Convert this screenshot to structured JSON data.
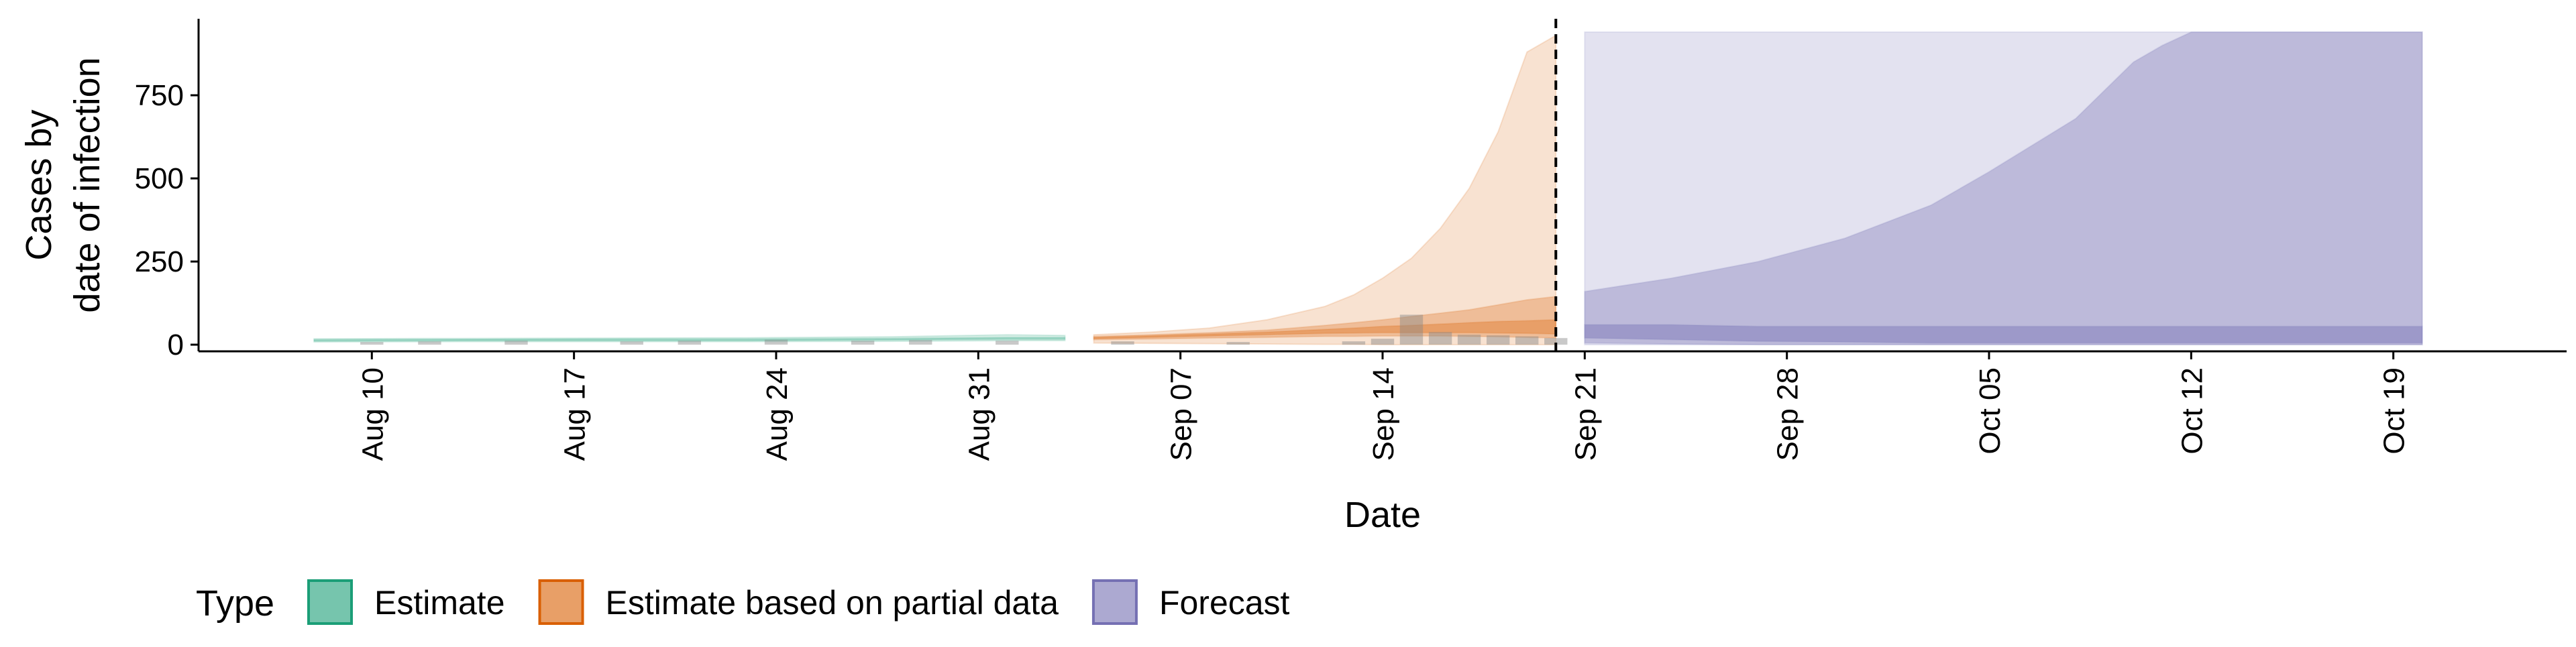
{
  "chart_data": {
    "type": "area",
    "xlabel": "Date",
    "ylabel_lines": [
      "Cases by",
      "date of infection"
    ],
    "x_range": [
      "2020-08-04",
      "2020-10-25"
    ],
    "ylim": [
      -20,
      980
    ],
    "y_ticks": [
      0,
      250,
      500,
      750
    ],
    "x_ticks": [
      {
        "date": "2020-08-10",
        "label": "Aug 10"
      },
      {
        "date": "2020-08-17",
        "label": "Aug 17"
      },
      {
        "date": "2020-08-24",
        "label": "Aug 24"
      },
      {
        "date": "2020-08-31",
        "label": "Aug 31"
      },
      {
        "date": "2020-09-07",
        "label": "Sep 07"
      },
      {
        "date": "2020-09-14",
        "label": "Sep 14"
      },
      {
        "date": "2020-09-21",
        "label": "Sep 21"
      },
      {
        "date": "2020-09-28",
        "label": "Sep 28"
      },
      {
        "date": "2020-10-05",
        "label": "Oct 05"
      },
      {
        "date": "2020-10-12",
        "label": "Oct 12"
      },
      {
        "date": "2020-10-19",
        "label": "Oct 19"
      }
    ],
    "vline_date": "2020-09-20",
    "grid": false,
    "legend": {
      "title": "Type",
      "position": "bottom-left"
    },
    "series": [
      {
        "name": "Estimate",
        "color": "#1b9e77",
        "x": [
          "2020-08-08",
          "2020-08-13",
          "2020-08-18",
          "2020-08-23",
          "2020-08-28",
          "2020-09-01",
          "2020-09-03"
        ],
        "bands": [
          {
            "lower": [
              8,
              9,
              9,
              9,
              10,
              12,
              12
            ],
            "upper": [
              18,
              19,
              20,
              21,
              24,
              30,
              28
            ]
          },
          {
            "lower": [
              11,
              12,
              12,
              12,
              14,
              16,
              16
            ],
            "upper": [
              15,
              16,
              17,
              17,
              19,
              22,
              22
            ]
          }
        ]
      },
      {
        "name": "Estimate based on partial data",
        "color": "#d95f02",
        "x": [
          "2020-09-04",
          "2020-09-06",
          "2020-09-08",
          "2020-09-10",
          "2020-09-12",
          "2020-09-13",
          "2020-09-14",
          "2020-09-15",
          "2020-09-16",
          "2020-09-17",
          "2020-09-18",
          "2020-09-19",
          "2020-09-20"
        ],
        "bands": [
          {
            "lower": [
              5,
              4,
              3,
              2,
              1,
              1,
              0,
              0,
              0,
              0,
              0,
              0,
              0
            ],
            "upper": [
              30,
              38,
              50,
              75,
              115,
              150,
              200,
              260,
              350,
              470,
              640,
              880,
              930
            ]
          },
          {
            "lower": [
              15,
              17,
              20,
              22,
              25,
              25,
              26,
              26,
              26,
              25,
              24,
              22,
              20
            ],
            "upper": [
              25,
              30,
              36,
              44,
              58,
              66,
              75,
              85,
              95,
              105,
              120,
              135,
              145
            ]
          },
          {
            "lower": [
              18,
              22,
              26,
              30,
              34,
              35,
              36,
              36,
              36,
              36,
              35,
              34,
              32
            ],
            "upper": [
              22,
              27,
              32,
              38,
              46,
              50,
              55,
              58,
              62,
              66,
              70,
              72,
              75
            ]
          }
        ]
      },
      {
        "name": "Forecast",
        "color": "#7570b3",
        "x": [
          "2020-09-21",
          "2020-09-24",
          "2020-09-27",
          "2020-09-30",
          "2020-10-03",
          "2020-10-05",
          "2020-10-08",
          "2020-10-10",
          "2020-10-11",
          "2020-10-12",
          "2020-10-15",
          "2020-10-18",
          "2020-10-20"
        ],
        "bands": [
          {
            "lower": [
              0,
              0,
              0,
              0,
              0,
              0,
              0,
              0,
              0,
              0,
              0,
              0,
              0
            ],
            "upper": [
              940,
              940,
              940,
              940,
              940,
              940,
              940,
              940,
              940,
              940,
              940,
              940,
              940
            ]
          },
          {
            "lower": [
              5,
              2,
              0,
              0,
              0,
              0,
              0,
              0,
              0,
              0,
              0,
              0,
              0
            ],
            "upper": [
              160,
              200,
              250,
              320,
              420,
              520,
              680,
              850,
              900,
              940,
              940,
              940,
              940
            ]
          },
          {
            "lower": [
              20,
              15,
              10,
              8,
              5,
              5,
              5,
              5,
              5,
              5,
              5,
              5,
              5
            ],
            "upper": [
              60,
              60,
              55,
              55,
              55,
              55,
              55,
              55,
              55,
              55,
              55,
              55,
              55
            ]
          }
        ]
      }
    ],
    "reported_bars": {
      "color": "#888888",
      "x": [
        "2020-08-10",
        "2020-08-12",
        "2020-08-15",
        "2020-08-19",
        "2020-08-21",
        "2020-08-24",
        "2020-08-27",
        "2020-08-29",
        "2020-09-01",
        "2020-09-05",
        "2020-09-09",
        "2020-09-13",
        "2020-09-14",
        "2020-09-15",
        "2020-09-16",
        "2020-09-17",
        "2020-09-18",
        "2020-09-19",
        "2020-09-20"
      ],
      "values": [
        8,
        10,
        12,
        10,
        12,
        15,
        12,
        14,
        12,
        10,
        8,
        10,
        18,
        90,
        38,
        30,
        28,
        25,
        20
      ]
    }
  }
}
